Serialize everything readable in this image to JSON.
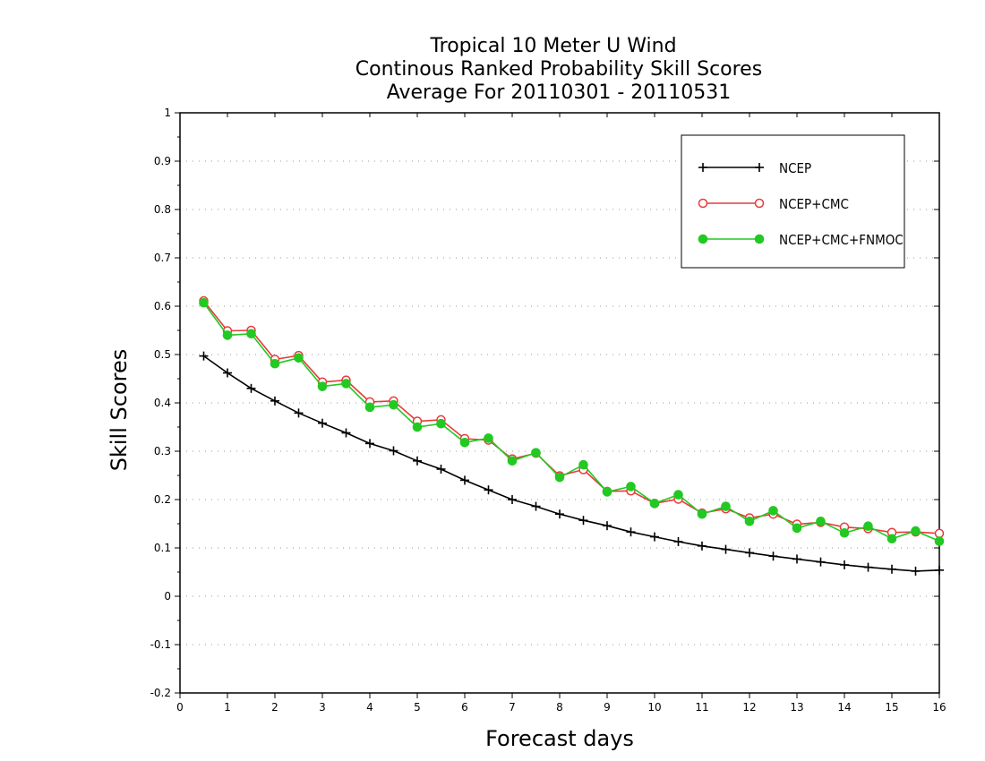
{
  "chart_data": {
    "type": "line",
    "title": [
      "Tropical 10 Meter U Wind",
      "Continous Ranked Probability Skill Scores",
      "Average For 20110301 - 20110531"
    ],
    "xlabel": "Forecast days",
    "ylabel": "Skill Scores",
    "xlim": [
      0,
      16
    ],
    "ylim": [
      -0.2,
      1
    ],
    "xticks": [
      0,
      1,
      2,
      3,
      4,
      5,
      6,
      7,
      8,
      9,
      10,
      11,
      12,
      13,
      14,
      15,
      16
    ],
    "yticks": [
      -0.2,
      -0.1,
      0,
      0.1,
      0.2,
      0.3,
      0.4,
      0.5,
      0.6,
      0.7,
      0.8,
      0.9,
      1
    ],
    "ytick_labels": [
      "-0.2",
      "-0.1",
      "0",
      "0.1",
      "0.2",
      "0.3",
      "0.4",
      "0.5",
      "0.6",
      "0.7",
      "0.8",
      "0.9",
      "1"
    ],
    "grid": "horizontal dotted",
    "legend_position": "top-right",
    "x": [
      0.5,
      1,
      1.5,
      2,
      2.5,
      3,
      3.5,
      4,
      4.5,
      5,
      5.5,
      6,
      6.5,
      7,
      7.5,
      8,
      8.5,
      9,
      9.5,
      10,
      10.5,
      11,
      11.5,
      12,
      12.5,
      13,
      13.5,
      14,
      14.5,
      15,
      15.5,
      16
    ],
    "series": [
      {
        "name": "NCEP",
        "color": "#000000",
        "marker": "plus",
        "values": [
          0.497,
          0.462,
          0.43,
          0.404,
          0.379,
          0.358,
          0.338,
          0.316,
          0.301,
          0.28,
          0.263,
          0.24,
          0.22,
          0.2,
          0.186,
          0.17,
          0.157,
          0.146,
          0.133,
          0.123,
          0.113,
          0.104,
          0.097,
          0.09,
          0.083,
          0.077,
          0.071,
          0.065,
          0.06,
          0.056,
          0.052,
          0.054
        ]
      },
      {
        "name": "NCEP+CMC",
        "color": "#e83a3a",
        "marker": "open-circle",
        "values": [
          0.611,
          0.549,
          0.55,
          0.49,
          0.498,
          0.443,
          0.447,
          0.402,
          0.404,
          0.362,
          0.365,
          0.326,
          0.323,
          0.284,
          0.296,
          0.249,
          0.262,
          0.217,
          0.218,
          0.192,
          0.201,
          0.172,
          0.181,
          0.162,
          0.17,
          0.149,
          0.153,
          0.143,
          0.14,
          0.132,
          0.133,
          0.13
        ]
      },
      {
        "name": "NCEP+CMC+FNMOC",
        "color": "#22c922",
        "marker": "filled-circle",
        "values": [
          0.607,
          0.54,
          0.543,
          0.481,
          0.493,
          0.434,
          0.44,
          0.391,
          0.396,
          0.35,
          0.357,
          0.318,
          0.327,
          0.28,
          0.297,
          0.246,
          0.272,
          0.216,
          0.227,
          0.192,
          0.21,
          0.17,
          0.186,
          0.155,
          0.177,
          0.141,
          0.155,
          0.131,
          0.145,
          0.119,
          0.135,
          0.114
        ]
      }
    ]
  }
}
